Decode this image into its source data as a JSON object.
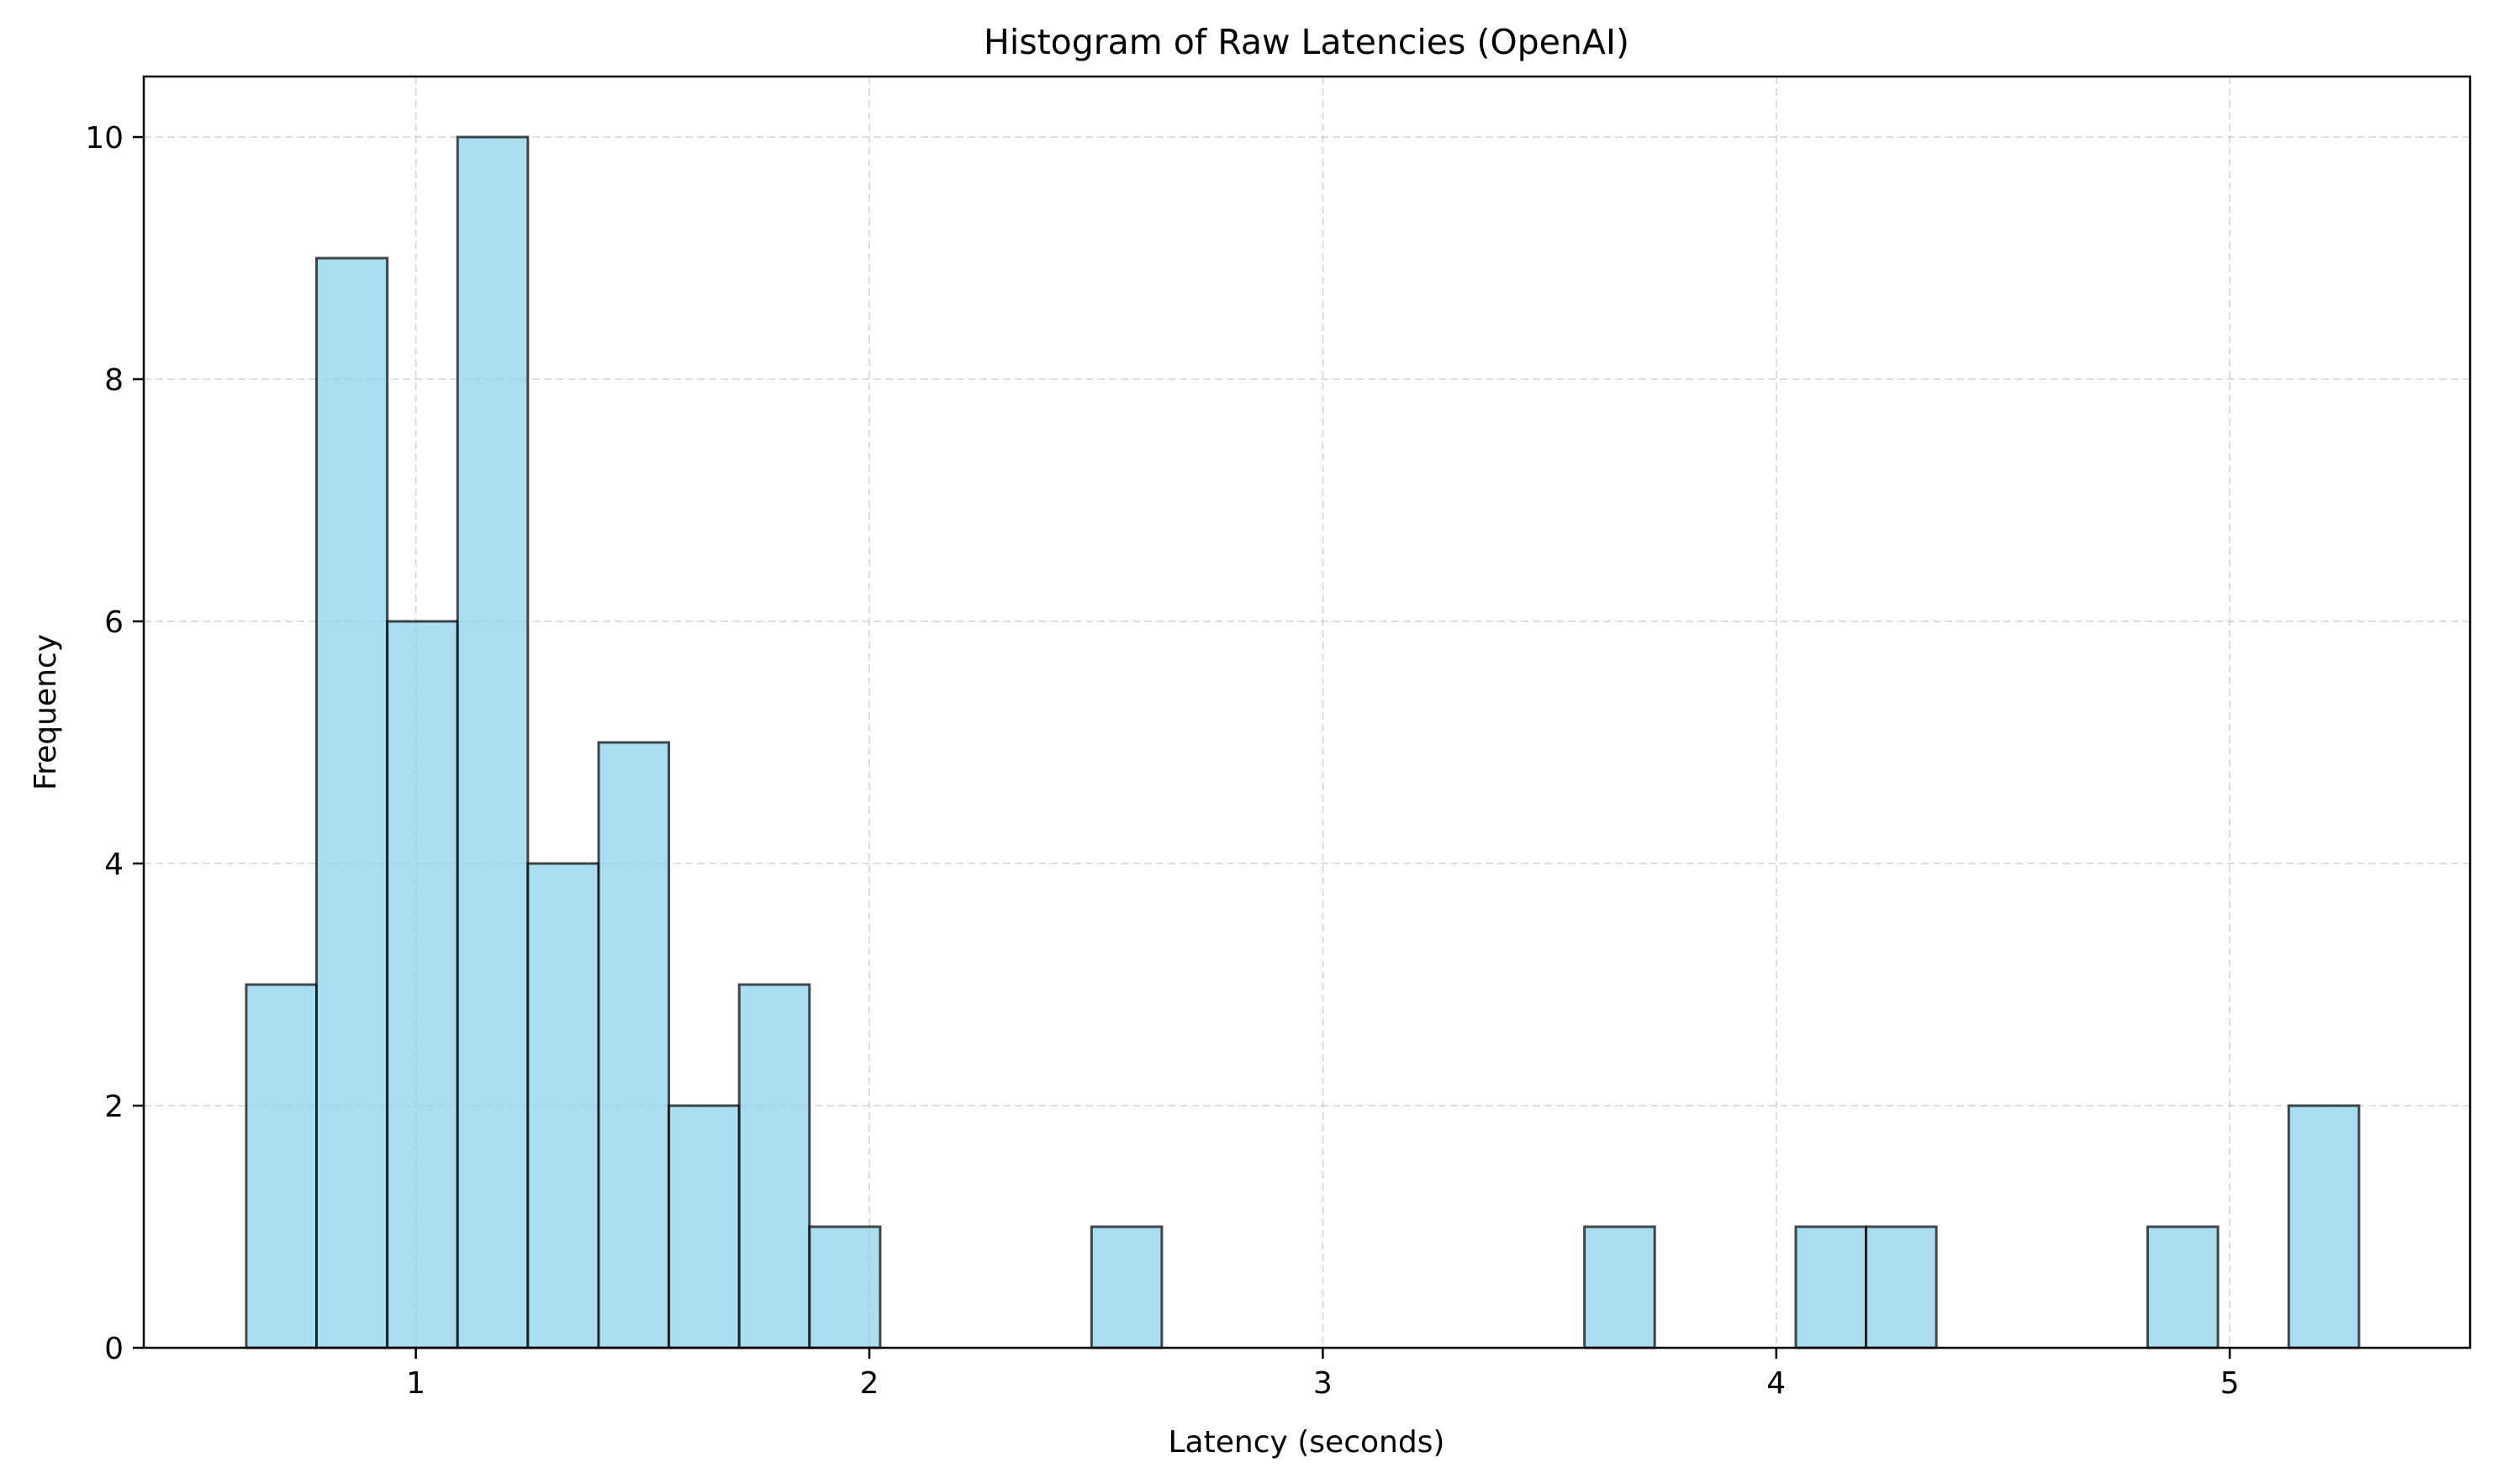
{
  "chart_data": {
    "type": "bar",
    "title": "Histogram of Raw Latencies (OpenAI)",
    "xlabel": "Latency (seconds)",
    "ylabel": "Frequency",
    "xlim": [
      0.4,
      5.53
    ],
    "ylim": [
      0,
      10.5
    ],
    "x_ticks": [
      1,
      2,
      3,
      4,
      5
    ],
    "y_ticks": [
      0,
      2,
      4,
      6,
      8,
      10
    ],
    "grid": true,
    "bar_color": "#87ceeb",
    "edge_color": "#000000",
    "bins": [
      {
        "x0": 0.626,
        "x1": 0.781,
        "count": 3
      },
      {
        "x0": 0.781,
        "x1": 0.937,
        "count": 9
      },
      {
        "x0": 0.937,
        "x1": 1.092,
        "count": 6
      },
      {
        "x0": 1.092,
        "x1": 1.247,
        "count": 10
      },
      {
        "x0": 1.247,
        "x1": 1.403,
        "count": 4
      },
      {
        "x0": 1.403,
        "x1": 1.558,
        "count": 5
      },
      {
        "x0": 1.558,
        "x1": 1.713,
        "count": 2
      },
      {
        "x0": 1.713,
        "x1": 1.868,
        "count": 3
      },
      {
        "x0": 1.868,
        "x1": 2.024,
        "count": 1
      },
      {
        "x0": 2.024,
        "x1": 2.179,
        "count": 0
      },
      {
        "x0": 2.179,
        "x1": 2.334,
        "count": 0
      },
      {
        "x0": 2.334,
        "x1": 2.49,
        "count": 0
      },
      {
        "x0": 2.49,
        "x1": 2.645,
        "count": 1
      },
      {
        "x0": 2.645,
        "x1": 2.8,
        "count": 0
      },
      {
        "x0": 2.8,
        "x1": 2.955,
        "count": 0
      },
      {
        "x0": 2.955,
        "x1": 3.111,
        "count": 0
      },
      {
        "x0": 3.111,
        "x1": 3.266,
        "count": 0
      },
      {
        "x0": 3.266,
        "x1": 3.421,
        "count": 0
      },
      {
        "x0": 3.421,
        "x1": 3.577,
        "count": 0
      },
      {
        "x0": 3.577,
        "x1": 3.732,
        "count": 1
      },
      {
        "x0": 3.732,
        "x1": 3.887,
        "count": 0
      },
      {
        "x0": 3.887,
        "x1": 4.043,
        "count": 0
      },
      {
        "x0": 4.043,
        "x1": 4.198,
        "count": 1
      },
      {
        "x0": 4.198,
        "x1": 4.353,
        "count": 1
      },
      {
        "x0": 4.353,
        "x1": 4.508,
        "count": 0
      },
      {
        "x0": 4.508,
        "x1": 4.664,
        "count": 0
      },
      {
        "x0": 4.664,
        "x1": 4.819,
        "count": 0
      },
      {
        "x0": 4.819,
        "x1": 4.974,
        "count": 1
      },
      {
        "x0": 4.974,
        "x1": 5.13,
        "count": 0
      },
      {
        "x0": 5.13,
        "x1": 5.285,
        "count": 2
      }
    ]
  }
}
